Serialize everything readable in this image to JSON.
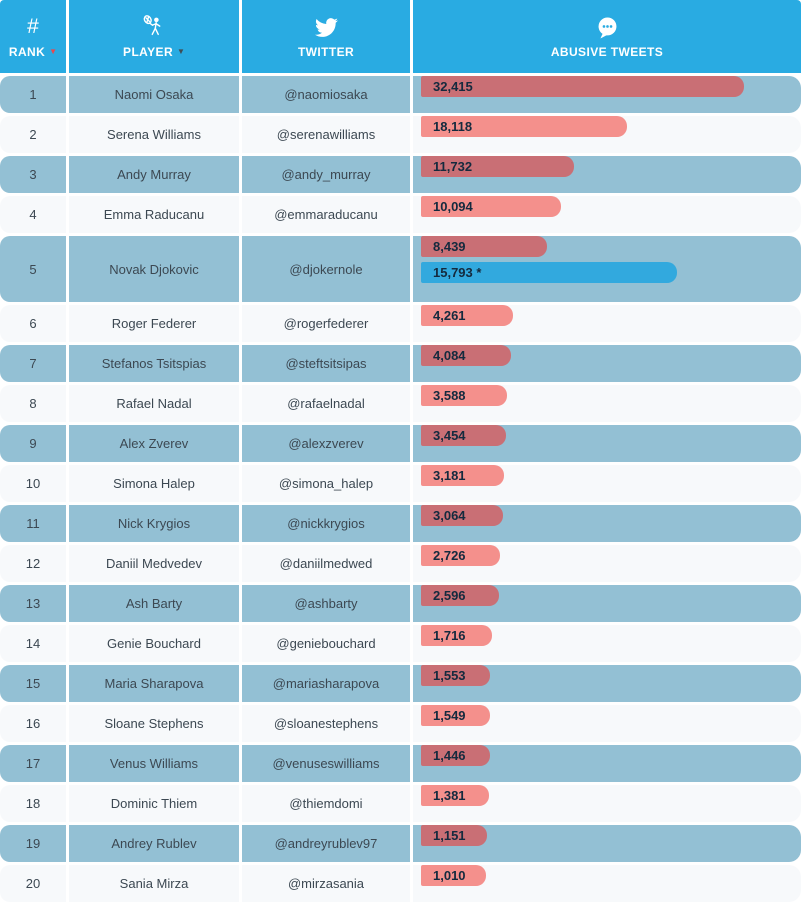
{
  "header": {
    "columns": [
      {
        "icon": "hash-icon",
        "label": "RANK",
        "sort_glyph": "▼",
        "sort_color": "red"
      },
      {
        "icon": "tennis-player-icon",
        "label": "PLAYER",
        "sort_glyph": "▼",
        "sort_color": "dark"
      },
      {
        "icon": "twitter-bird-icon",
        "label": "TWITTER"
      },
      {
        "icon": "speech-bubble-icon",
        "label": "ABUSIVE TWEETS"
      }
    ]
  },
  "colors": {
    "header_blue": "#29abe2",
    "row_blue": "#93c0d4",
    "row_light": "#f7f9fb",
    "bar_red_light": "#f4908c",
    "bar_red_dark": "#c96f75",
    "bar_blue": "#32a9de",
    "bar_label": "#142a3e",
    "cell_text": "#3c4852",
    "sort_red": "#e9484f",
    "sort_dark": "#3e4e57"
  },
  "rows": [
    {
      "rank": "1",
      "player": "Naomi Osaka",
      "twitter": "@naomiosaka",
      "bars": [
        {
          "label": "32,415",
          "value": 32415,
          "color": "red"
        }
      ]
    },
    {
      "rank": "2",
      "player": "Serena Williams",
      "twitter": "@serenawilliams",
      "bars": [
        {
          "label": "18,118",
          "value": 18118,
          "color": "red"
        }
      ]
    },
    {
      "rank": "3",
      "player": "Andy Murray",
      "twitter": "@andy_murray",
      "bars": [
        {
          "label": "11,732",
          "value": 11732,
          "color": "red"
        }
      ]
    },
    {
      "rank": "4",
      "player": "Emma Raducanu",
      "twitter": "@emmaraducanu",
      "bars": [
        {
          "label": "10,094",
          "value": 10094,
          "color": "red"
        }
      ]
    },
    {
      "rank": "5",
      "player": "Novak Djokovic",
      "twitter": "@djokernole",
      "bars": [
        {
          "label": "8,439",
          "value": 8439,
          "color": "red"
        },
        {
          "label": "15,793 *",
          "value": 15793,
          "color": "blue",
          "stack_on_previous": true
        }
      ]
    },
    {
      "rank": "6",
      "player": "Roger Federer",
      "twitter": "@rogerfederer",
      "bars": [
        {
          "label": "4,261",
          "value": 4261,
          "color": "red"
        }
      ]
    },
    {
      "rank": "7",
      "player": "Stefanos Tsitspias",
      "twitter": "@steftsitsipas",
      "bars": [
        {
          "label": "4,084",
          "value": 4084,
          "color": "red"
        }
      ]
    },
    {
      "rank": "8",
      "player": "Rafael Nadal",
      "twitter": "@rafaelnadal",
      "bars": [
        {
          "label": "3,588",
          "value": 3588,
          "color": "red"
        }
      ]
    },
    {
      "rank": "9",
      "player": "Alex Zverev",
      "twitter": "@alexzverev",
      "bars": [
        {
          "label": "3,454",
          "value": 3454,
          "color": "red"
        }
      ]
    },
    {
      "rank": "10",
      "player": "Simona Halep",
      "twitter": "@simona_halep",
      "bars": [
        {
          "label": "3,181",
          "value": 3181,
          "color": "red"
        }
      ]
    },
    {
      "rank": "11",
      "player": "Nick Krygios",
      "twitter": "@nickkrygios",
      "bars": [
        {
          "label": "3,064",
          "value": 3064,
          "color": "red"
        }
      ]
    },
    {
      "rank": "12",
      "player": "Daniil Medvedev",
      "twitter": "@daniilmedwed",
      "bars": [
        {
          "label": "2,726",
          "value": 2726,
          "color": "red"
        }
      ]
    },
    {
      "rank": "13",
      "player": "Ash Barty",
      "twitter": "@ashbarty",
      "bars": [
        {
          "label": "2,596",
          "value": 2596,
          "color": "red"
        }
      ]
    },
    {
      "rank": "14",
      "player": "Genie Bouchard",
      "twitter": "@geniebouchard",
      "bars": [
        {
          "label": "1,716",
          "value": 1716,
          "color": "red"
        }
      ]
    },
    {
      "rank": "15",
      "player": "Maria Sharapova",
      "twitter": "@mariasharapova",
      "bars": [
        {
          "label": "1,553",
          "value": 1553,
          "color": "red"
        }
      ]
    },
    {
      "rank": "16",
      "player": "Sloane Stephens",
      "twitter": "@sloanestephens",
      "bars": [
        {
          "label": "1,549",
          "value": 1549,
          "color": "red"
        }
      ]
    },
    {
      "rank": "17",
      "player": "Venus Williams",
      "twitter": "@venuseswilliams",
      "bars": [
        {
          "label": "1,446",
          "value": 1446,
          "color": "red"
        }
      ]
    },
    {
      "rank": "18",
      "player": "Dominic Thiem",
      "twitter": "@thiemdomi",
      "bars": [
        {
          "label": "1,381",
          "value": 1381,
          "color": "red"
        }
      ]
    },
    {
      "rank": "19",
      "player": "Andrey Rublev",
      "twitter": "@andreyrublev97",
      "bars": [
        {
          "label": "1,151",
          "value": 1151,
          "color": "red"
        }
      ]
    },
    {
      "rank": "20",
      "player": "Sania Mirza",
      "twitter": "@mirzasania",
      "bars": [
        {
          "label": "1,010",
          "value": 1010,
          "color": "red"
        }
      ]
    }
  ],
  "chart_data": {
    "type": "bar",
    "orientation": "horizontal",
    "title": "",
    "xlabel": "ABUSIVE TWEETS",
    "ylabel": "PLAYER",
    "legend": false,
    "grid": false,
    "categories": [
      "Naomi Osaka",
      "Serena Williams",
      "Andy Murray",
      "Emma Raducanu",
      "Novak Djokovic",
      "Roger Federer",
      "Stefanos Tsitspias",
      "Rafael Nadal",
      "Alex Zverev",
      "Simona Halep",
      "Nick Krygios",
      "Daniil Medvedev",
      "Ash Barty",
      "Genie Bouchard",
      "Maria Sharapova",
      "Sloane Stephens",
      "Venus Williams",
      "Dominic Thiem",
      "Andrey Rublev",
      "Sania Mirza"
    ],
    "series": [
      {
        "name": "Abusive tweets",
        "color": "#f4908c",
        "values": [
          32415,
          18118,
          11732,
          10094,
          8439,
          4261,
          4084,
          3588,
          3454,
          3181,
          3064,
          2726,
          2596,
          1716,
          1553,
          1549,
          1446,
          1381,
          1151,
          1010
        ]
      }
    ],
    "annotations": [
      {
        "category": "Novak Djokovic",
        "label": "15,793 *",
        "value": 15793,
        "color": "#32a9de"
      }
    ]
  }
}
